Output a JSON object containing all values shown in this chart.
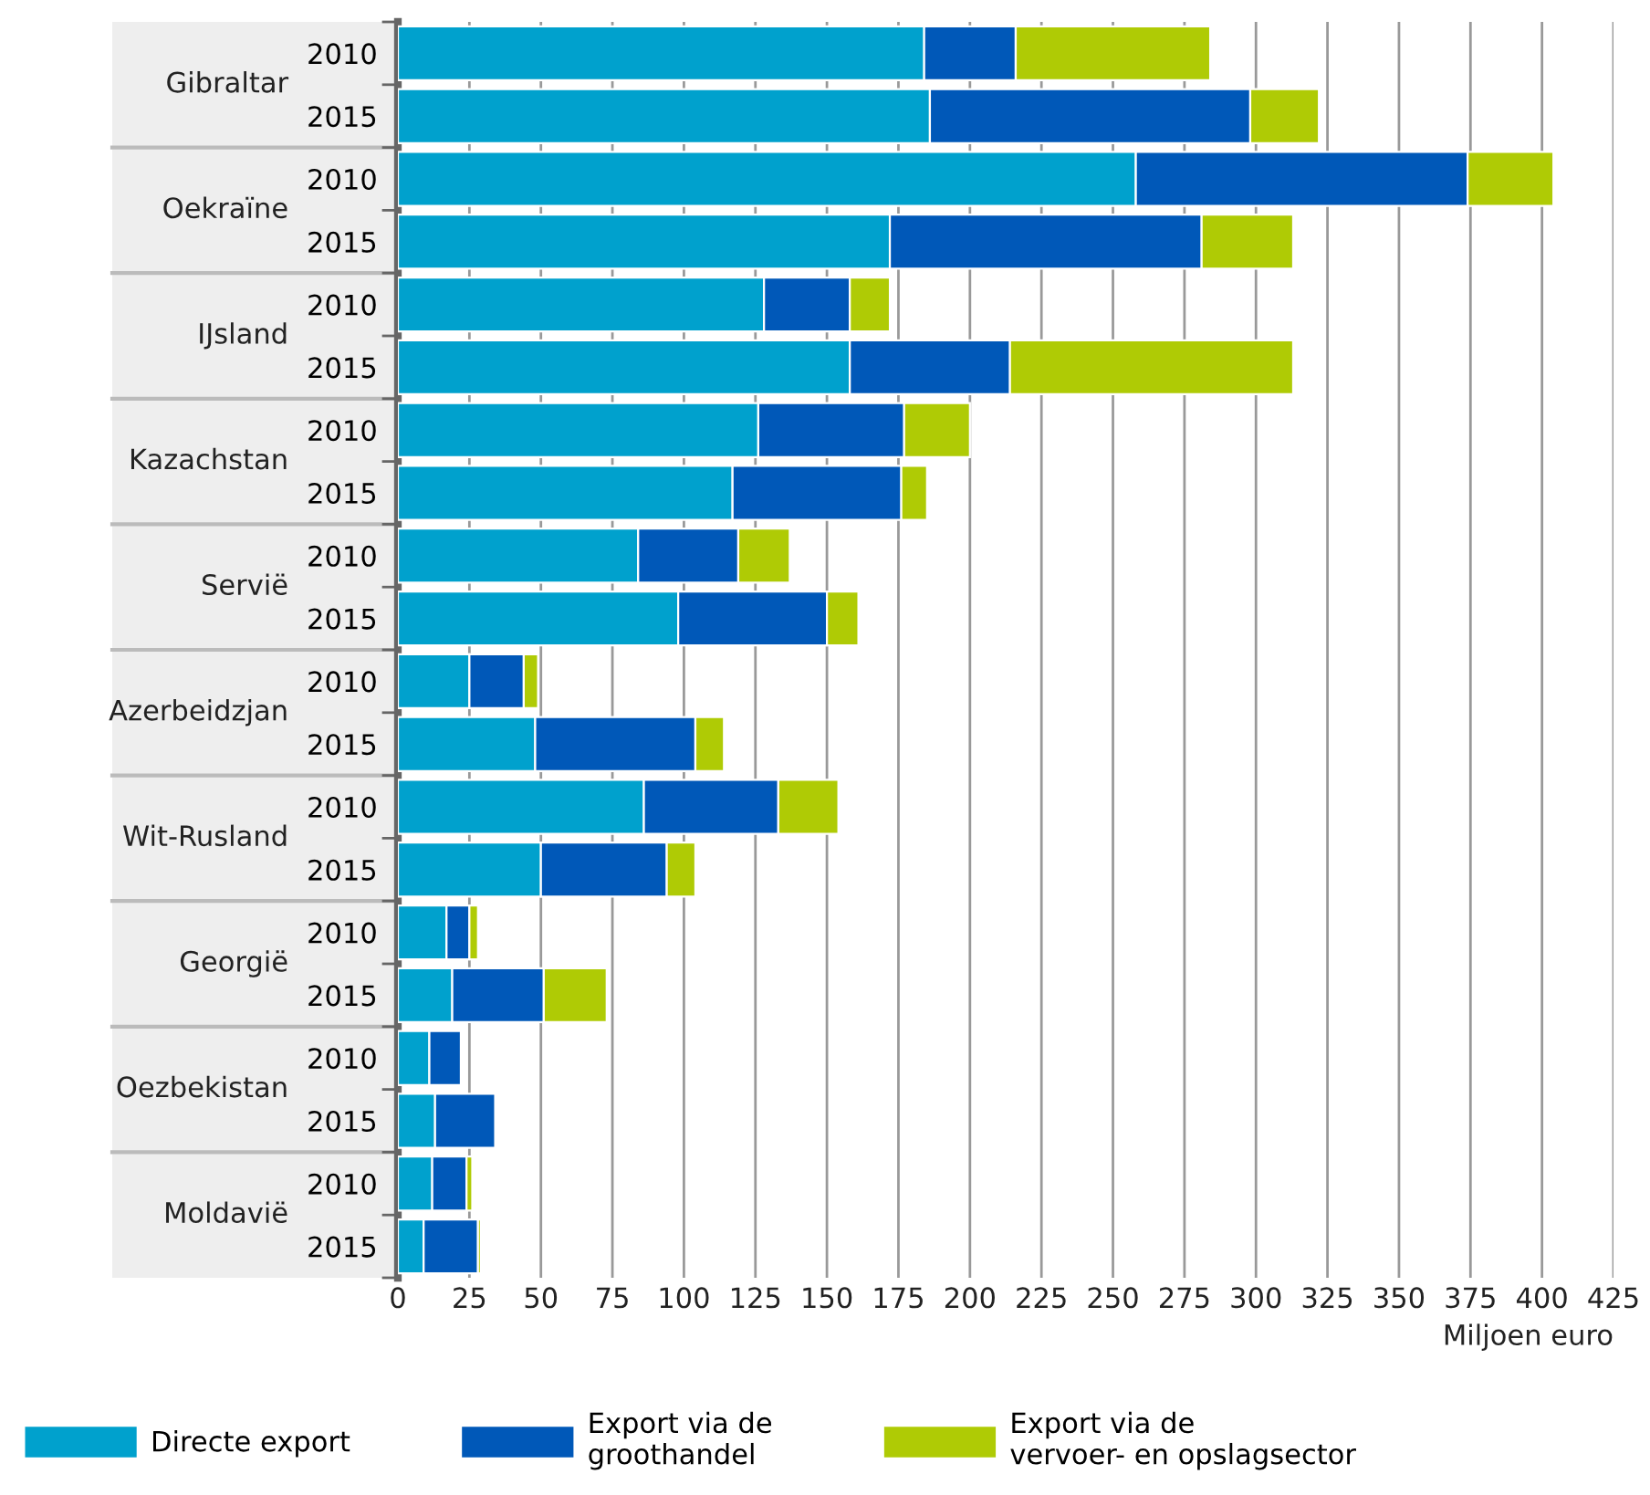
{
  "chart_data": {
    "type": "bar",
    "orientation": "horizontal",
    "stacked": true,
    "categories": [
      "2010",
      "2015",
      "2010",
      "2015",
      "2010",
      "2015",
      "2010",
      "2015",
      "2010",
      "2015",
      "2010",
      "2015",
      "2010",
      "2015",
      "2010",
      "2015",
      "2010",
      "2015",
      "2010",
      "2015"
    ],
    "annotations": [
      "Gibraltar",
      "Oekraïne",
      "IJsland",
      "Kazachstan",
      "Servië",
      "Azerbeidzjan",
      "Wit-Rusland",
      "Georgië",
      "Oezbekistan",
      "Moldavië"
    ],
    "series": [
      {
        "name": "Directe export",
        "color": "#00a1cd",
        "values": [
          184,
          186,
          258,
          172,
          128,
          158,
          126,
          117,
          84,
          98,
          25,
          48,
          86,
          50,
          17,
          19,
          11,
          13,
          12,
          9
        ]
      },
      {
        "name": "Export via de\ngroothandel",
        "color": "#0058b8",
        "values": [
          32,
          112,
          116,
          109,
          30,
          56,
          51,
          59,
          35,
          52,
          19,
          56,
          47,
          44,
          8,
          32,
          11,
          21,
          12,
          19
        ]
      },
      {
        "name": "Export via de\nvervoer- en opslagsector",
        "color": "#afcb05",
        "values": [
          68,
          24,
          30,
          32,
          14,
          99,
          23,
          9,
          18,
          11,
          5,
          10,
          21,
          10,
          3,
          22,
          0,
          0,
          2,
          1
        ]
      }
    ],
    "xlabel": "Miljoen euro",
    "xlim": [
      0,
      425
    ],
    "xticks": [
      0,
      25,
      50,
      75,
      100,
      125,
      150,
      175,
      200,
      225,
      250,
      275,
      300,
      325,
      350,
      375,
      400,
      425
    ],
    "grid": "x",
    "legend": "bottom"
  }
}
